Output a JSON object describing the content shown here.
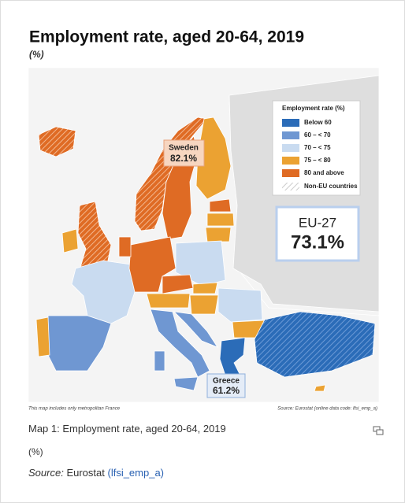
{
  "header": {
    "title": "Employment rate, aged 20-64, 2019",
    "subtitle": "(%)"
  },
  "legend": {
    "title": "Employment rate (%)",
    "items": [
      {
        "label": "Below 60",
        "color": "#2b6cb8"
      },
      {
        "label": "60 – < 70",
        "color": "#6f97d2"
      },
      {
        "label": "70 – < 75",
        "color": "#c9dbf0"
      },
      {
        "label": "75 – < 80",
        "color": "#eba232"
      },
      {
        "label": "80 and above",
        "color": "#df6b24"
      }
    ],
    "non_eu": "Non-EU countries"
  },
  "eu_box": {
    "name": "EU-27",
    "value": "73.1%"
  },
  "callouts": [
    {
      "name": "Sweden",
      "value": "82.1%"
    },
    {
      "name": "Greece",
      "value": "61.2%"
    }
  ],
  "map_notes": {
    "left": "This map includes only metropolitan France",
    "right": "Source: Eurostat (online data code: lfsi_emp_a)"
  },
  "caption": {
    "title": "Map 1: Employment rate, aged 20-64, 2019",
    "unit": "(%)",
    "source_label": "Source:",
    "source_text": "Eurostat",
    "source_link": "(lfsi_emp_a)"
  }
}
